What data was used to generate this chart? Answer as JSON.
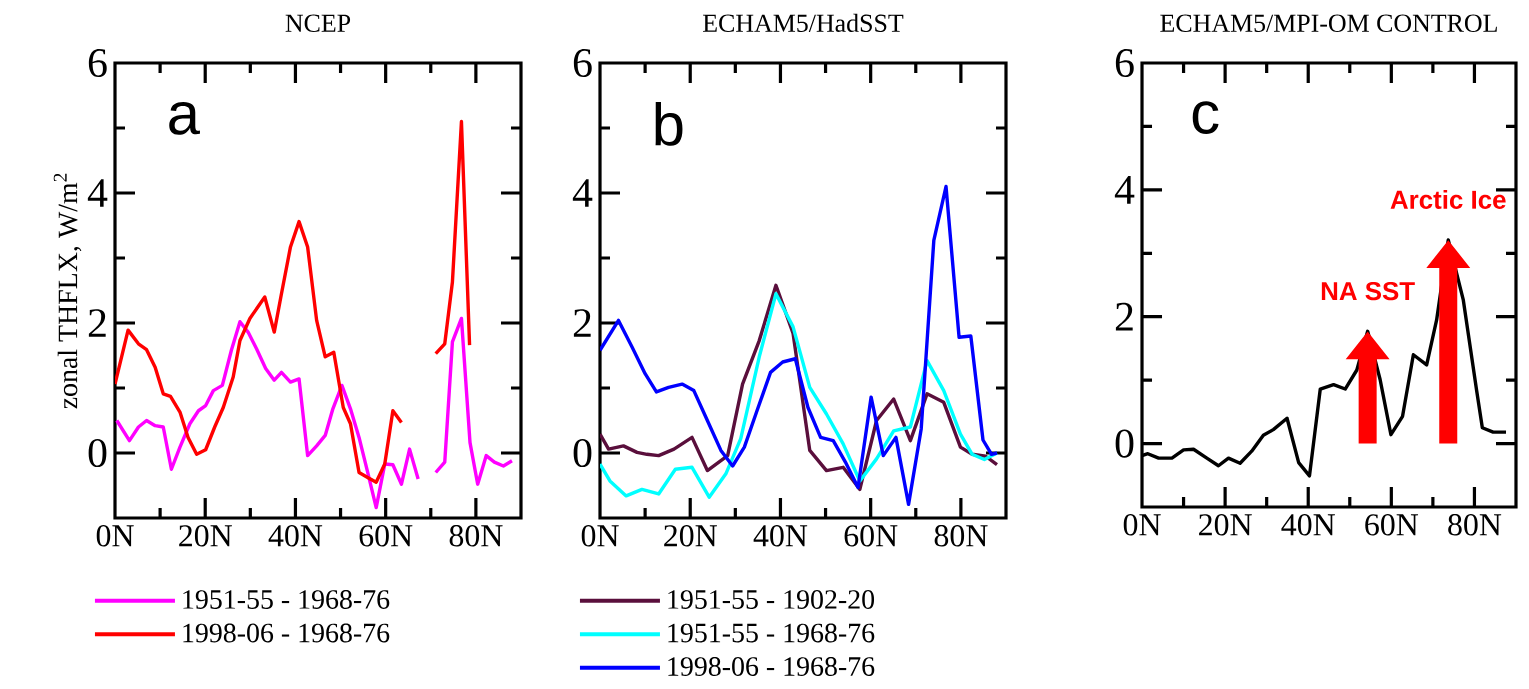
{
  "chart_data": [
    {
      "type": "line",
      "title": "NCEP",
      "ylabel": "zonal THFLX, W/m$^{2}$",
      "annotations": [
        "a"
      ],
      "legend": "bottom",
      "xlim": [
        0,
        90
      ],
      "ylim": [
        -1,
        6
      ],
      "xticks": [
        {
          "value": 0,
          "label": "0N"
        },
        {
          "value": 10,
          "label": null
        },
        {
          "value": 20,
          "label": "20N"
        },
        {
          "value": 30,
          "label": null
        },
        {
          "value": 40,
          "label": "40N"
        },
        {
          "value": 50,
          "label": null
        },
        {
          "value": 60,
          "label": "60N"
        },
        {
          "value": 70,
          "label": null
        },
        {
          "value": 80,
          "label": "80N"
        }
      ],
      "yticks": [
        0,
        {
          "value": 1,
          "label": null
        },
        2,
        {
          "value": 3,
          "label": null
        },
        4,
        {
          "value": 5,
          "label": null
        },
        6
      ],
      "series": [
        {
          "name": "1951-55 - 1968-76",
          "color": "#ff00ff",
          "x": [
            0.4,
            3.2,
            5.2,
            7,
            8.9,
            10.7,
            12.5,
            14.4,
            16.6,
            18.5,
            20.1,
            21.8,
            23.8,
            25.8,
            27.7,
            29.5,
            31.4,
            33.4,
            35.3,
            36.9,
            38.9,
            40.8,
            42.7,
            44.7,
            46.6,
            48.3,
            50.3,
            52.2,
            54.1,
            56.1,
            57.9,
            59.8,
            61.6,
            63.5,
            65.3,
            67.2,
            68.6,
            69.5,
            70.5,
            71.1,
            73.1,
            74.8,
            76.8,
            78.7,
            80.4,
            82.3,
            84.1,
            86.1,
            88
          ],
          "values": [
            0.5,
            0.19,
            0.4,
            0.5,
            0.42,
            0.4,
            -0.25,
            0.09,
            0.45,
            0.65,
            0.73,
            0.96,
            1.04,
            1.58,
            2.02,
            1.86,
            1.6,
            1.3,
            1.12,
            1.24,
            1.09,
            1.14,
            -0.04,
            0.11,
            0.27,
            0.68,
            1.04,
            0.68,
            0.24,
            -0.32,
            -0.84,
            -0.17,
            -0.18,
            -0.48,
            0.06,
            -0.4,
            null,
            null,
            null,
            -0.3,
            -0.14,
            1.71,
            2.07,
            0.16,
            -0.48,
            -0.04,
            -0.14,
            -0.2,
            -0.12
          ]
        },
        {
          "name": "1998-06 - 1968-76",
          "color": "#ff0000",
          "x": [
            0,
            2.9,
            5.2,
            7,
            8.9,
            10.7,
            12.3,
            14.4,
            16.2,
            18.1,
            20.1,
            22.1,
            24,
            26.2,
            27.7,
            29.9,
            33.2,
            35.3,
            36.9,
            38.9,
            40.8,
            42.7,
            44.7,
            46.6,
            48.5,
            50.6,
            52.2,
            54.1,
            56.1,
            57.9,
            59.8,
            61.6,
            63.5,
            65.3,
            67.3,
            69.4,
            71.1,
            73.1,
            74.8,
            76.8,
            78.6
          ],
          "values": [
            1.06,
            1.89,
            1.68,
            1.59,
            1.32,
            0.91,
            0.87,
            0.63,
            0.24,
            -0.02,
            0.05,
            0.4,
            0.7,
            1.17,
            1.73,
            2.07,
            2.4,
            1.86,
            2.45,
            3.17,
            3.56,
            3.17,
            2.04,
            1.48,
            1.55,
            0.7,
            0.45,
            -0.3,
            -0.38,
            -0.45,
            -0.17,
            0.65,
            0.47,
            null,
            null,
            null,
            1.53,
            1.68,
            2.63,
            5.1,
            1.66
          ]
        }
      ]
    },
    {
      "type": "line",
      "title": "ECHAM5/HadSST",
      "annotations": [
        "b"
      ],
      "legend": "bottom",
      "xlim": [
        0,
        90
      ],
      "ylim": [
        -1,
        6
      ],
      "xticks": [
        {
          "value": 0,
          "label": "0N"
        },
        {
          "value": 10,
          "label": null
        },
        {
          "value": 20,
          "label": "20N"
        },
        {
          "value": 30,
          "label": null
        },
        {
          "value": 40,
          "label": "40N"
        },
        {
          "value": 50,
          "label": null
        },
        {
          "value": 60,
          "label": "60N"
        },
        {
          "value": 70,
          "label": null
        },
        {
          "value": 80,
          "label": "80N"
        }
      ],
      "yticks": [
        0,
        {
          "value": 1,
          "label": null
        },
        2,
        {
          "value": 3,
          "label": null
        },
        4,
        {
          "value": 5,
          "label": null
        },
        6
      ],
      "series": [
        {
          "name": "1951-55 - 1902-20",
          "color": "#5a0f3c",
          "x": [
            0,
            1.9,
            5.2,
            8.2,
            10.4,
            13,
            16.4,
            20.4,
            23.8,
            28.3,
            31.6,
            35.3,
            39,
            42.8,
            46.5,
            50.2,
            53.9,
            57.6,
            61.3,
            65.1,
            68.8,
            72.5,
            76.2,
            79.9,
            82.5,
            85.5,
            88
          ],
          "values": [
            0.29,
            0.06,
            0.11,
            0.01,
            -0.02,
            -0.04,
            0.06,
            0.24,
            -0.27,
            -0.04,
            1.06,
            1.73,
            2.58,
            1.84,
            0.04,
            -0.27,
            -0.22,
            -0.56,
            0.5,
            0.83,
            0.19,
            0.91,
            0.78,
            0.09,
            -0.02,
            -0.05,
            -0.18
          ]
        },
        {
          "name": "1951-55 - 1968-76",
          "color": "#00ffff",
          "x": [
            0,
            2.2,
            5.8,
            9.3,
            13,
            16.7,
            20.4,
            24.2,
            27.9,
            31.2,
            35.3,
            39,
            42.8,
            46.5,
            50.2,
            53.9,
            57.6,
            61.3,
            65.1,
            68.8,
            72.5,
            76.2,
            79.9,
            82.5,
            85.2,
            88
          ],
          "values": [
            -0.17,
            -0.43,
            -0.66,
            -0.56,
            -0.63,
            -0.25,
            -0.22,
            -0.68,
            -0.32,
            0.22,
            1.48,
            2.45,
            1.94,
            1.01,
            0.6,
            0.14,
            -0.43,
            -0.09,
            0.34,
            0.4,
            1.42,
            0.96,
            0.29,
            -0.02,
            -0.1,
            0
          ]
        },
        {
          "name": "1998-06 - 1968-76",
          "color": "#0000ff",
          "x": [
            0,
            4.1,
            7.1,
            10,
            12.5,
            15.2,
            18.2,
            20.8,
            23.8,
            26.8,
            29.4,
            32,
            34.8,
            37.8,
            40.5,
            43.3,
            46.1,
            48.9,
            51.7,
            54.4,
            57.2,
            60.1,
            62.8,
            65.6,
            68.4,
            71.2,
            74,
            76.7,
            79.6,
            82.2,
            84.9,
            86.8,
            88
          ],
          "values": [
            1.58,
            2.04,
            1.63,
            1.22,
            0.94,
            1.01,
            1.06,
            0.96,
            0.5,
            0.04,
            -0.2,
            0.09,
            0.65,
            1.24,
            1.4,
            1.45,
            0.7,
            0.24,
            0.19,
            -0.14,
            -0.53,
            0.86,
            -0.04,
            0.24,
            -0.79,
            0.37,
            3.27,
            4.1,
            1.78,
            1.8,
            0.2,
            -0.02,
            0
          ]
        }
      ]
    },
    {
      "type": "line",
      "title": "ECHAM5/MPI-OM CONTROL",
      "annotations": [
        "c",
        {
          "text": "NA SST",
          "x": 54.3,
          "y": 1.77
        },
        {
          "text": "Arctic Ice",
          "x": 73.7,
          "y": 3.21
        }
      ],
      "xlim": [
        0,
        90
      ],
      "ylim": [
        -1,
        6
      ],
      "xticks": [
        {
          "value": 0,
          "label": "0N"
        },
        {
          "value": 10,
          "label": null
        },
        {
          "value": 20,
          "label": "20N"
        },
        {
          "value": 30,
          "label": null
        },
        {
          "value": 40,
          "label": "40N"
        },
        {
          "value": 50,
          "label": null
        },
        {
          "value": 60,
          "label": "60N"
        },
        {
          "value": 70,
          "label": null
        },
        {
          "value": 80,
          "label": "80N"
        }
      ],
      "yticks": [
        0,
        {
          "value": 1,
          "label": null
        },
        2,
        {
          "value": 3,
          "label": null
        },
        4,
        {
          "value": 5,
          "label": null
        },
        6
      ],
      "series": [
        {
          "color": "#000000",
          "x": [
            0,
            1.4,
            4,
            7.2,
            10,
            12.4,
            15.6,
            18.4,
            20.8,
            23.6,
            26.4,
            29.2,
            31.6,
            34.9,
            37.7,
            40.3,
            42.9,
            46.1,
            48.9,
            51.7,
            54.3,
            57.3,
            59.9,
            62.7,
            65.3,
            68.5,
            70.9,
            73.7,
            77.3,
            80.5,
            81.9,
            84.5,
            87.6
          ],
          "values": [
            -0.19,
            -0.16,
            -0.23,
            -0.23,
            -0.1,
            -0.09,
            -0.23,
            -0.35,
            -0.23,
            -0.31,
            -0.12,
            0.13,
            0.22,
            0.4,
            -0.3,
            -0.51,
            0.86,
            0.93,
            0.86,
            1.16,
            1.77,
            1.01,
            0.14,
            0.43,
            1.4,
            1.24,
            1.95,
            3.21,
            2.27,
            0.85,
            0.25,
            0.18,
            0.18
          ]
        }
      ]
    }
  ]
}
